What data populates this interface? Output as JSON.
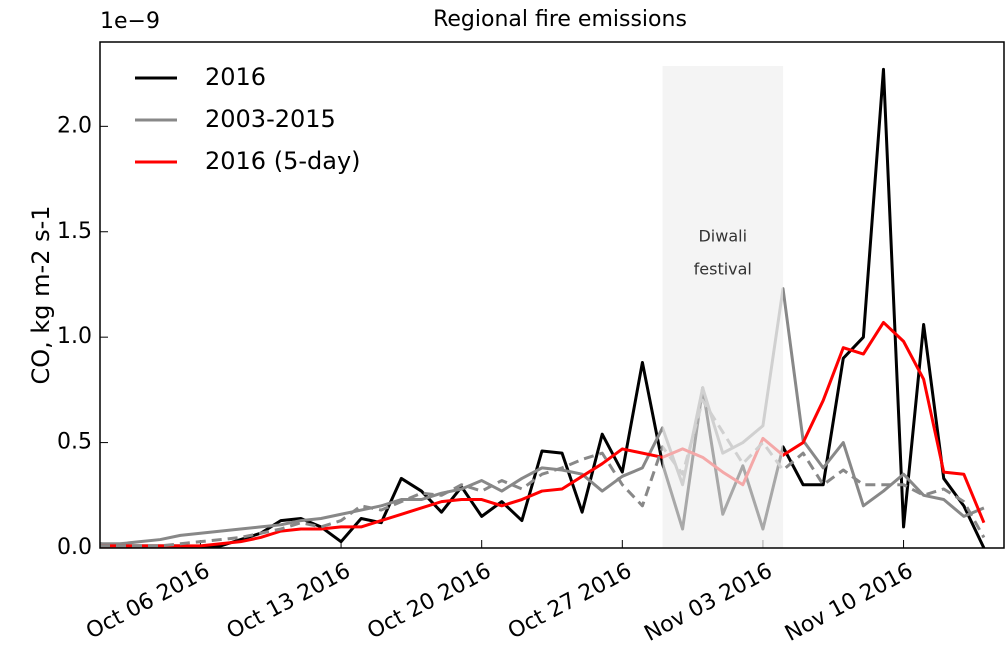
{
  "chart_data": {
    "type": "line",
    "title": "Regional fire emissions",
    "ylabel": "CO, kg m-2 s-1",
    "y_offset_label": "1e−9",
    "x": [
      "2016-10-01",
      "2016-10-02",
      "2016-10-03",
      "2016-10-04",
      "2016-10-05",
      "2016-10-06",
      "2016-10-07",
      "2016-10-08",
      "2016-10-09",
      "2016-10-10",
      "2016-10-11",
      "2016-10-12",
      "2016-10-13",
      "2016-10-14",
      "2016-10-15",
      "2016-10-16",
      "2016-10-17",
      "2016-10-18",
      "2016-10-19",
      "2016-10-20",
      "2016-10-21",
      "2016-10-22",
      "2016-10-23",
      "2016-10-24",
      "2016-10-25",
      "2016-10-26",
      "2016-10-27",
      "2016-10-28",
      "2016-10-29",
      "2016-10-30",
      "2016-10-31",
      "2016-11-01",
      "2016-11-02",
      "2016-11-03",
      "2016-11-04",
      "2016-11-05",
      "2016-11-06",
      "2016-11-07",
      "2016-11-08",
      "2016-11-09",
      "2016-11-10",
      "2016-11-11",
      "2016-11-12",
      "2016-11-13",
      "2016-11-14"
    ],
    "series": [
      {
        "name": "2016",
        "color": "#000000",
        "values": [
          0.02,
          0.01,
          0.01,
          0.01,
          0.01,
          0.0,
          0.01,
          0.04,
          0.07,
          0.13,
          0.14,
          0.1,
          0.03,
          0.14,
          0.12,
          0.33,
          0.27,
          0.17,
          0.29,
          0.15,
          0.22,
          0.13,
          0.46,
          0.45,
          0.17,
          0.54,
          0.36,
          0.88,
          0.4,
          0.09,
          0.76,
          0.16,
          0.39,
          0.09,
          0.48,
          0.3,
          0.3,
          0.9,
          1.0,
          2.27,
          0.1,
          1.06,
          0.33,
          0.2,
          0.0
        ]
      },
      {
        "name": "2003-2015",
        "color": "#888888",
        "values": [
          0.02,
          0.02,
          0.03,
          0.04,
          0.06,
          0.07,
          0.08,
          0.09,
          0.1,
          0.11,
          0.13,
          0.14,
          0.16,
          0.18,
          0.2,
          0.23,
          0.23,
          0.26,
          0.28,
          0.32,
          0.27,
          0.33,
          0.38,
          0.37,
          0.35,
          0.27,
          0.34,
          0.38,
          0.57,
          0.3,
          0.76,
          0.45,
          0.5,
          0.58,
          1.23,
          0.51,
          0.38,
          0.5,
          0.2,
          0.27,
          0.35,
          0.25,
          0.23,
          0.15,
          0.19
        ]
      },
      {
        "name": "2016 (5-day)",
        "color": "#ff0000",
        "values": [
          0.01,
          0.01,
          0.01,
          0.01,
          0.01,
          0.01,
          0.02,
          0.03,
          0.05,
          0.08,
          0.09,
          0.09,
          0.1,
          0.1,
          0.13,
          0.16,
          0.19,
          0.22,
          0.23,
          0.23,
          0.2,
          0.23,
          0.27,
          0.28,
          0.34,
          0.4,
          0.47,
          0.45,
          0.43,
          0.47,
          0.43,
          0.36,
          0.3,
          0.52,
          0.44,
          0.5,
          0.7,
          0.95,
          0.92,
          1.07,
          0.98,
          0.8,
          0.36,
          0.35,
          0.12
        ]
      },
      {
        "color": "#888888",
        "dashed": true,
        "values": [
          0.01,
          0.01,
          0.01,
          0.01,
          0.02,
          0.03,
          0.04,
          0.05,
          0.07,
          0.09,
          0.12,
          0.1,
          0.13,
          0.2,
          0.18,
          0.22,
          0.26,
          0.25,
          0.3,
          0.27,
          0.32,
          0.28,
          0.35,
          0.38,
          0.42,
          0.45,
          0.3,
          0.2,
          0.48,
          0.35,
          0.7,
          0.55,
          0.4,
          0.5,
          0.37,
          0.45,
          0.3,
          0.37,
          0.3,
          0.3,
          0.3,
          0.25,
          0.28,
          0.22,
          0.05
        ]
      }
    ],
    "xlim": [
      "2016-10-01",
      "2016-11-15"
    ],
    "xticks": [
      {
        "value": "2016-10-06",
        "label": "Oct 06 2016"
      },
      {
        "value": "2016-10-13",
        "label": "Oct 13 2016"
      },
      {
        "value": "2016-10-20",
        "label": "Oct 20 2016"
      },
      {
        "value": "2016-10-27",
        "label": "Oct 27 2016"
      },
      {
        "value": "2016-11-03",
        "label": "Nov 03 2016"
      },
      {
        "value": "2016-11-10",
        "label": "Nov 10 2016"
      }
    ],
    "ylim": [
      0,
      2.4
    ],
    "yticks": [
      {
        "value": 0,
        "label": "0.0"
      },
      0.5,
      {
        "value": 1,
        "label": "1.0"
      },
      1.5,
      {
        "value": 2,
        "label": "2.0"
      }
    ],
    "span": {
      "x": [
        "2016-10-29",
        "2016-11-04"
      ],
      "color": "#f0f0f0",
      "text": [
        "Diwali",
        "festival"
      ]
    },
    "legend": "upper left",
    "grid": false
  }
}
